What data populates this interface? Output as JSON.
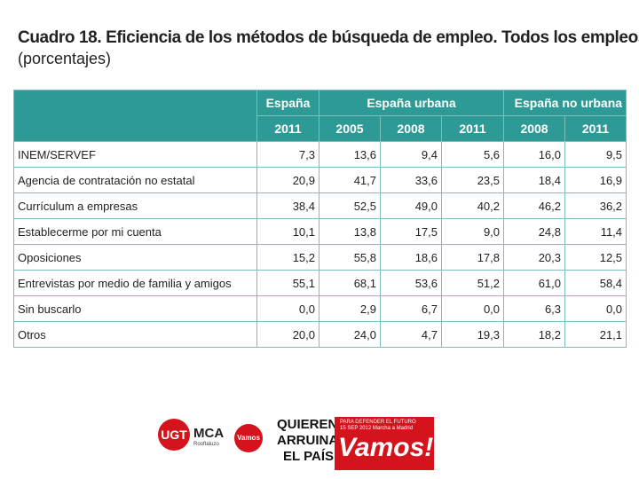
{
  "header": {
    "title": "Cuadro 18. Eficiencia de los métodos de búsqueda de empleo. Todos los empleos",
    "subtitle": "(porcentajes)"
  },
  "table": {
    "groups": [
      "España",
      "España urbana",
      "España no urbana"
    ],
    "years": [
      "2011",
      "2005",
      "2008",
      "2011",
      "2008",
      "2011"
    ],
    "rows": [
      [
        "INEM/SERVEF",
        "7,3",
        "13,6",
        "9,4",
        "5,6",
        "16,0",
        "9,5"
      ],
      [
        "Agencia de contratación no estatal",
        "20,9",
        "41,7",
        "33,6",
        "23,5",
        "18,4",
        "16,9"
      ],
      [
        "Currículum a empresas",
        "38,4",
        "52,5",
        "49,0",
        "40,2",
        "46,2",
        "36,2"
      ],
      [
        "Establecerme por mi cuenta",
        "10,1",
        "13,8",
        "17,5",
        "9,0",
        "24,8",
        "11,4"
      ],
      [
        "Oposiciones",
        "15,2",
        "55,8",
        "18,6",
        "17,8",
        "20,3",
        "12,5"
      ],
      [
        "Entrevistas por medio de familia y amigos",
        "55,1",
        "68,1",
        "53,6",
        "51,2",
        "61,0",
        "58,4"
      ],
      [
        "Sin buscarlo",
        "0,0",
        "2,9",
        "6,7",
        "0,0",
        "6,3",
        "0,0"
      ],
      [
        "Otros",
        "20,0",
        "24,0",
        "4,7",
        "19,3",
        "18,2",
        "21,1"
      ]
    ]
  },
  "footer": {
    "ugt": "UGT",
    "mca": "MCA",
    "mca_sub": "Rooftaluzo",
    "vamos_small": "Vamos",
    "slogan": [
      "QUIEREN",
      "ARRUINAR",
      "EL PAÍS"
    ],
    "banner_top": "PARA DEFENDER EL FUTURO",
    "banner_date": "15 SEP 2012 Marcha a Madrid",
    "banner": "Vamos!"
  }
}
